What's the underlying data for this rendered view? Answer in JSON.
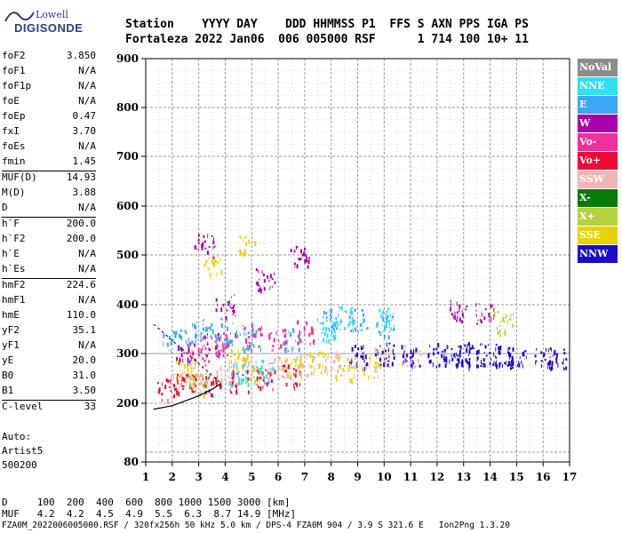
{
  "logo": {
    "top": "Lowell",
    "bottom": "DIGISONDE"
  },
  "header": {
    "row1": "Station    YYYY DAY    DDD HHMMSS P1  FFS S AXN PPS IGA PS",
    "row2": "Fortaleza 2022 Jan06  006 005000 RSF      1 714 100 10+ 11"
  },
  "params": [
    {
      "name": "foF2",
      "value": "3.850"
    },
    {
      "name": "foF1",
      "value": "N/A"
    },
    {
      "name": "foF1p",
      "value": "N/A"
    },
    {
      "name": "foE",
      "value": "N/A"
    },
    {
      "name": "foEp",
      "value": "0.47"
    },
    {
      "name": "fxI",
      "value": "3.70"
    },
    {
      "name": "foEs",
      "value": "N/A"
    },
    {
      "name": "fmin",
      "value": "1.45"
    },
    {
      "name": "MUF(D)",
      "value": "14.93"
    },
    {
      "name": "M(D)",
      "value": "3.88"
    },
    {
      "name": "D",
      "value": "N/A"
    },
    {
      "name": "h`F",
      "value": "200.0"
    },
    {
      "name": "h`F2",
      "value": "200.0"
    },
    {
      "name": "h`E",
      "value": "N/A"
    },
    {
      "name": "h`Es",
      "value": "N/A"
    },
    {
      "name": "hmF2",
      "value": "224.6"
    },
    {
      "name": "hmF1",
      "value": "N/A"
    },
    {
      "name": "hmE",
      "value": "110.0"
    },
    {
      "name": "yF2",
      "value": "35.1"
    },
    {
      "name": "yF1",
      "value": "N/A"
    },
    {
      "name": "yE",
      "value": "20.0"
    },
    {
      "name": "B0",
      "value": "31.0"
    },
    {
      "name": "B1",
      "value": "3.50"
    },
    {
      "name": "C-level",
      "value": "33"
    }
  ],
  "auto": {
    "line1": "Auto:",
    "line2": "Artist5",
    "line3": "500200"
  },
  "legend": [
    {
      "label": "NoVal",
      "color": "#8c8c8c"
    },
    {
      "label": "NNE",
      "color": "#2ee0f0"
    },
    {
      "label": "E",
      "color": "#3aa8f5"
    },
    {
      "label": "W",
      "color": "#a800a8"
    },
    {
      "label": "Vo-",
      "color": "#f0309c"
    },
    {
      "label": "Vo+",
      "color": "#ee0a36"
    },
    {
      "label": "SSW",
      "color": "#f5b4b4"
    },
    {
      "label": "X-",
      "color": "#0a7a0a"
    },
    {
      "label": "X+",
      "color": "#b4d23c"
    },
    {
      "label": "SSE",
      "color": "#e6d20a"
    },
    {
      "label": "NNW",
      "color": "#1a0ac8"
    }
  ],
  "footer": {
    "d_row": "D     100  200  400  600  800 1000 1500 3000 [km]",
    "muf_row": "MUF   4.2  4.2  4.5  4.9  5.5  6.3  8.7 14.9 [MHz]",
    "info": "FZA0M_2022006005000.RSF / 320fx256h 50 kHz 5.0 km / DPS-4 FZA0M 904 / 3.9 S 321.6 E   Ion2Png 1.3.20"
  },
  "chart_data": {
    "type": "scatter",
    "x_ticks": [
      "1",
      "2",
      "3",
      "4",
      "5",
      "6",
      "7",
      "8",
      "9",
      "10",
      "11",
      "12",
      "13",
      "14",
      "15",
      "16",
      "17"
    ],
    "y_ticks": [
      "80",
      "200",
      "300",
      "400",
      "500",
      "600",
      "700",
      "800",
      "900"
    ],
    "xlim": [
      1,
      17
    ],
    "y_axis": "virtual height (nonlinear axis, 80 to 900)",
    "series": [
      {
        "name": "SSW",
        "color": "#f5b4b4",
        "points": [
          [
            2.2,
            250
          ],
          [
            3.0,
            255
          ],
          [
            4.0,
            262
          ],
          [
            5.0,
            268
          ],
          [
            6.0,
            272
          ],
          [
            7.0,
            278
          ],
          [
            8.0,
            283
          ],
          [
            9.0,
            288
          ],
          [
            10.0,
            292
          ],
          [
            11.0,
            296
          ]
        ]
      },
      {
        "name": "SSE",
        "color": "#e6d20a",
        "points": [
          [
            2.5,
            265
          ],
          [
            4.5,
            290
          ],
          [
            6.5,
            270
          ],
          [
            7.5,
            285
          ],
          [
            8.5,
            270
          ],
          [
            9.5,
            275
          ],
          [
            3.5,
            480
          ],
          [
            4.8,
            520
          ]
        ]
      },
      {
        "name": "NNW",
        "color": "#1a0ac8",
        "points": [
          [
            9.0,
            295
          ],
          [
            10.0,
            300
          ],
          [
            11.0,
            298
          ],
          [
            12.0,
            300
          ],
          [
            12.5,
            298
          ],
          [
            13.0,
            296
          ],
          [
            13.5,
            300
          ],
          [
            14.0,
            298
          ],
          [
            14.5,
            296
          ],
          [
            15.0,
            295
          ],
          [
            16.0,
            292
          ],
          [
            16.5,
            293
          ]
        ]
      },
      {
        "name": "E",
        "color": "#3aa8f5",
        "points": [
          [
            2.0,
            330
          ],
          [
            2.8,
            345
          ],
          [
            3.5,
            350
          ],
          [
            4.2,
            340
          ],
          [
            5.0,
            330
          ],
          [
            6.5,
            330
          ],
          [
            8.0,
            370
          ],
          [
            9.0,
            370
          ],
          [
            10.0,
            360
          ]
        ]
      },
      {
        "name": "Vo+",
        "color": "#ee0a36",
        "points": [
          [
            1.8,
            232
          ],
          [
            2.5,
            238
          ],
          [
            3.5,
            242
          ],
          [
            4.5,
            246
          ],
          [
            5.5,
            250
          ],
          [
            6.5,
            255
          ]
        ]
      },
      {
        "name": "W",
        "color": "#a800a8",
        "points": [
          [
            2.5,
            300
          ],
          [
            3.5,
            320
          ],
          [
            4.0,
            400
          ],
          [
            3.2,
            520
          ],
          [
            5.5,
            450
          ],
          [
            6.8,
            500
          ],
          [
            12.8,
            390
          ],
          [
            13.8,
            380
          ]
        ]
      },
      {
        "name": "NNE",
        "color": "#2ee0f0",
        "points": [
          [
            4.5,
            260
          ],
          [
            5.5,
            265
          ],
          [
            7.8,
            350
          ],
          [
            10.0,
            370
          ],
          [
            8.5,
            375
          ]
        ]
      },
      {
        "name": "X+",
        "color": "#b4d23c",
        "points": [
          [
            3.0,
            240
          ],
          [
            5.0,
            262
          ],
          [
            14.5,
            365
          ]
        ]
      },
      {
        "name": "Vo-",
        "color": "#f0309c",
        "points": [
          [
            3.0,
            300
          ],
          [
            4.0,
            320
          ],
          [
            5.0,
            340
          ],
          [
            6.0,
            330
          ],
          [
            7.0,
            345
          ]
        ]
      }
    ],
    "profile_curve": [
      [
        1.3,
        188
      ],
      [
        2.0,
        195
      ],
      [
        2.5,
        205
      ],
      [
        3.0,
        215
      ],
      [
        3.5,
        228
      ],
      [
        3.85,
        240
      ]
    ]
  }
}
